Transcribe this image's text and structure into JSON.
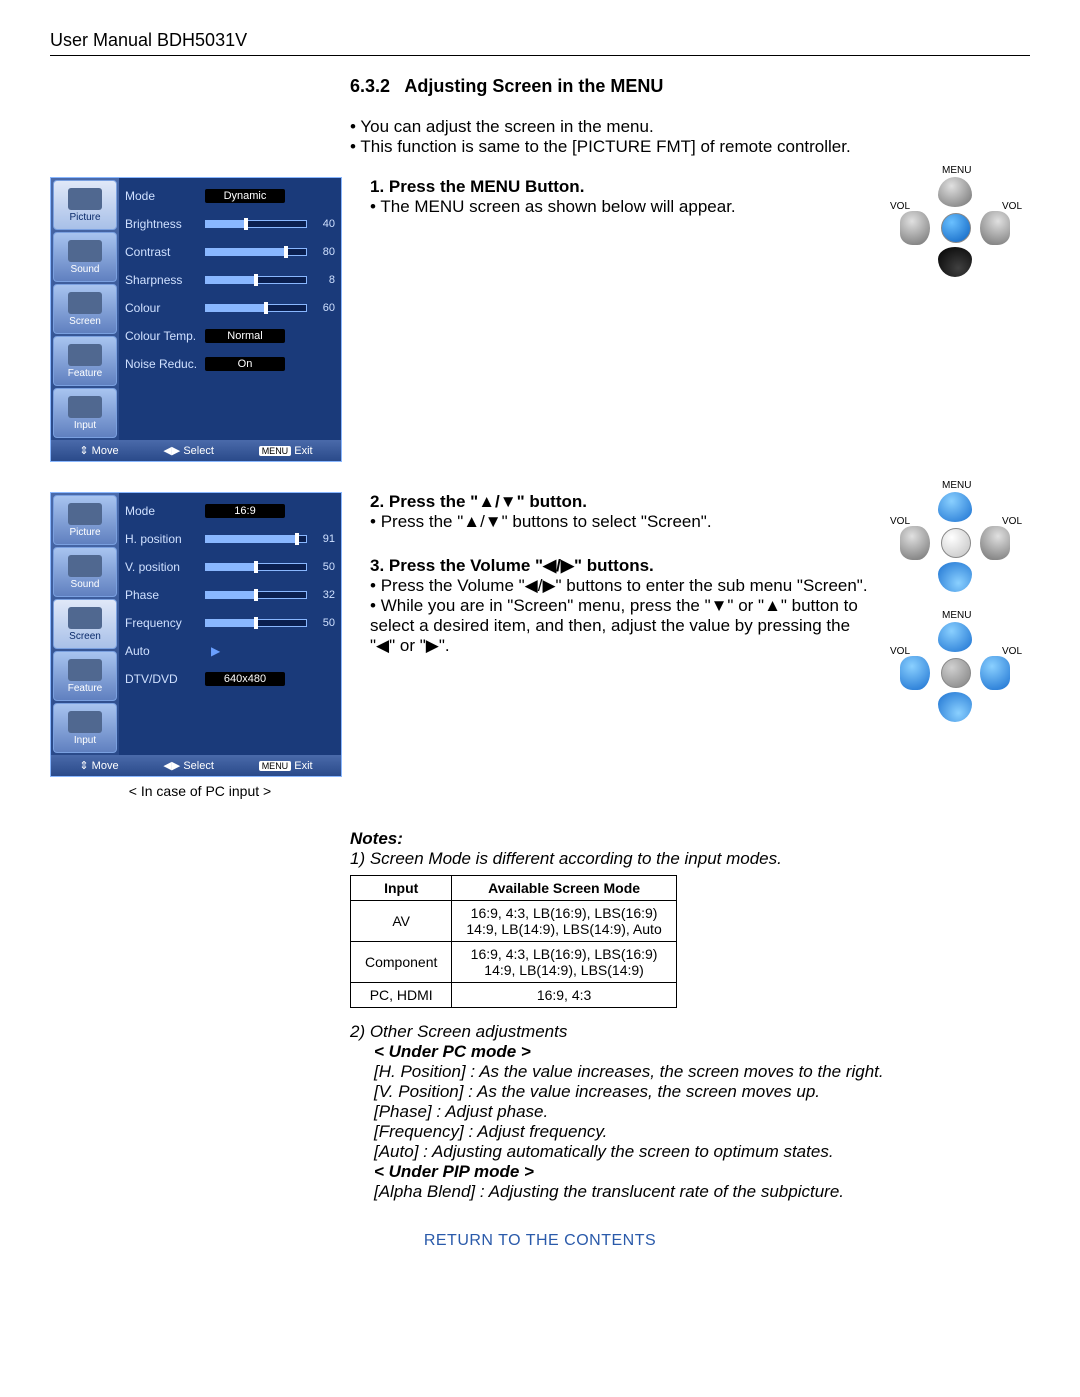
{
  "header": "User Manual BDH5031V",
  "section": {
    "num": "6.3.2",
    "title": "Adjusting Screen in the MENU"
  },
  "intro": [
    "You can adjust the screen in the menu.",
    "This function is same to the [PICTURE FMT] of remote controller."
  ],
  "steps": {
    "s1": {
      "title": "1. Press the MENU Button.",
      "line1": "The MENU screen as shown below will appear."
    },
    "s2": {
      "title": "2. Press the \"▲/▼\" button.",
      "line1": "Press the \"▲/▼\" buttons to select \"Screen\"."
    },
    "s3": {
      "title": "3. Press the Volume \"◀/▶\" buttons.",
      "line1": "Press the Volume \"◀/▶\" buttons to enter the sub menu \"Screen\".",
      "line2": "While you are in \"Screen\" menu, press the \"▼\" or \"▲\" button to select a desired item, and then, adjust the value by pressing the \"◀\" or \"▶\"."
    }
  },
  "osd_tabs": [
    "Picture",
    "Sound",
    "Screen",
    "Feature",
    "Input"
  ],
  "osd_footer": {
    "move": "Move",
    "select": "Select",
    "menu": "MENU",
    "exit": "Exit"
  },
  "osd1": {
    "selected_tab": 0,
    "rows": [
      {
        "label": "Mode",
        "type": "box",
        "value": "Dynamic"
      },
      {
        "label": "Brightness",
        "type": "slider",
        "value": 40,
        "max": 100
      },
      {
        "label": "Contrast",
        "type": "slider",
        "value": 80,
        "max": 100
      },
      {
        "label": "Sharpness",
        "type": "slider",
        "value": 8,
        "max": 16
      },
      {
        "label": "Colour",
        "type": "slider",
        "value": 60,
        "max": 100
      },
      {
        "label": "Colour Temp.",
        "type": "box",
        "value": "Normal"
      },
      {
        "label": "Noise Reduc.",
        "type": "box",
        "value": "On"
      }
    ]
  },
  "osd2": {
    "selected_tab": 2,
    "rows": [
      {
        "label": "Mode",
        "type": "box",
        "value": "16:9"
      },
      {
        "label": "H. position",
        "type": "slider",
        "value": 91,
        "max": 100
      },
      {
        "label": "V. position",
        "type": "slider",
        "value": 50,
        "max": 100
      },
      {
        "label": "Phase",
        "type": "slider",
        "value": 32,
        "max": 64
      },
      {
        "label": "Frequency",
        "type": "slider",
        "value": 50,
        "max": 100
      },
      {
        "label": "Auto",
        "type": "arrow"
      },
      {
        "label": "DTV/DVD",
        "type": "box",
        "value": "640x480"
      }
    ],
    "caption": "< In case of PC input >"
  },
  "remote_labels": {
    "menu": "MENU",
    "vol": "VOL"
  },
  "notes": {
    "heading": "Notes:",
    "n1": "1) Screen Mode is different according to the input modes.",
    "table": {
      "headers": [
        "Input",
        "Available Screen Mode"
      ],
      "rows": [
        [
          "AV",
          "16:9, 4:3, LB(16:9), LBS(16:9)\n14:9, LB(14:9), LBS(14:9), Auto"
        ],
        [
          "Component",
          "16:9, 4:3, LB(16:9), LBS(16:9)\n14:9, LB(14:9), LBS(14:9)"
        ],
        [
          "PC, HDMI",
          "16:9, 4:3"
        ]
      ]
    },
    "n2": "2) Other Screen adjustments",
    "pc_head": "< Under PC mode >",
    "pc": [
      "[H. Position] : As the value increases, the screen moves to the right.",
      "[V. Position] : As the value increases, the screen moves up.",
      "[Phase] : Adjust phase.",
      "[Frequency] : Adjust frequency.",
      "[Auto] : Adjusting automatically the screen to optimum states."
    ],
    "pip_head": "< Under PIP mode >",
    "pip": "[Alpha Blend] : Adjusting the translucent rate of the subpicture."
  },
  "return": "RETURN TO THE CONTENTS",
  "colors": {
    "osd_bg": "#1a3a7a",
    "osd_border": "#89b7ff",
    "slider_fill": "#89b7ff",
    "link": "#2a5aaa"
  }
}
